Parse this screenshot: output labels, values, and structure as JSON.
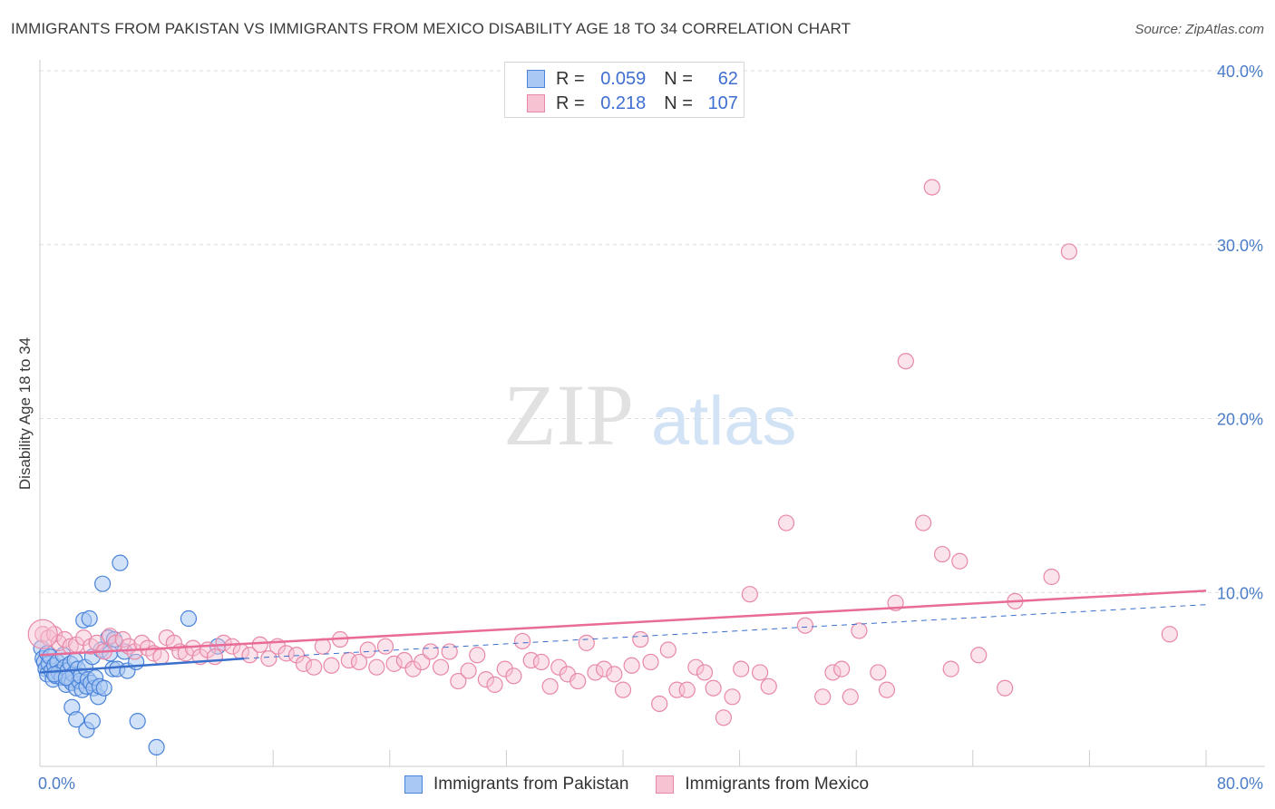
{
  "header": {
    "title": "IMMIGRANTS FROM PAKISTAN VS IMMIGRANTS FROM MEXICO DISABILITY AGE 18 TO 34 CORRELATION CHART",
    "source": "Source: ZipAtlas.com"
  },
  "watermark": {
    "zip": "ZIP",
    "atlas": "atlas"
  },
  "legend_top": {
    "rows": [
      {
        "r_label": "R =",
        "r_value": "0.059",
        "n_label": "N =",
        "n_value": "62"
      },
      {
        "r_label": "R =",
        "r_value": "0.218",
        "n_label": "N =",
        "n_value": "107"
      }
    ]
  },
  "colors": {
    "pakistan_fill": "#a9c8f3",
    "pakistan_stroke": "#4a83d9",
    "pakistan_line": "#3a6fcc",
    "mexico_fill": "#f7c2d2",
    "mexico_stroke": "#e888a8",
    "mexico_line": "#e86b98",
    "tick_text": "#4a7cc7",
    "grid": "#dddddd"
  },
  "chart_data": {
    "type": "scatter",
    "title": "IMMIGRANTS FROM PAKISTAN VS IMMIGRANTS FROM MEXICO DISABILITY AGE 18 TO 34 CORRELATION CHART",
    "xlabel": "",
    "ylabel": "Disability Age 18 to 34",
    "xlim": [
      0,
      80
    ],
    "ylim": [
      0,
      40
    ],
    "x_tick_labels": [
      "0.0%",
      "80.0%"
    ],
    "y_ticks": [
      10,
      20,
      30,
      40
    ],
    "y_tick_labels": [
      "10.0%",
      "20.0%",
      "30.0%",
      "40.0%"
    ],
    "legend_position": "bottom",
    "series": [
      {
        "name": "Immigrants from Pakistan",
        "r": 0.059,
        "n": 62,
        "trend": {
          "x": [
            0,
            14
          ],
          "y": [
            5.4,
            6.2
          ],
          "extended_x": [
            14,
            80
          ],
          "extended_y": [
            6.2,
            9.3
          ]
        },
        "points": [
          [
            0.1,
            6.8
          ],
          [
            0.2,
            6.2
          ],
          [
            0.3,
            6.0
          ],
          [
            0.4,
            5.6
          ],
          [
            0.5,
            5.3
          ],
          [
            0.5,
            6.5
          ],
          [
            0.6,
            5.9
          ],
          [
            0.7,
            6.3
          ],
          [
            0.8,
            5.5
          ],
          [
            0.9,
            5.0
          ],
          [
            1.0,
            5.8
          ],
          [
            1.1,
            5.2
          ],
          [
            1.2,
            6.0
          ],
          [
            1.3,
            5.4
          ],
          [
            1.5,
            5.1
          ],
          [
            1.6,
            6.4
          ],
          [
            1.7,
            5.7
          ],
          [
            1.8,
            4.7
          ],
          [
            1.9,
            5.5
          ],
          [
            2.0,
            5.0
          ],
          [
            2.1,
            5.9
          ],
          [
            2.2,
            4.8
          ],
          [
            2.3,
            5.3
          ],
          [
            2.4,
            6.1
          ],
          [
            2.5,
            4.5
          ],
          [
            2.6,
            5.6
          ],
          [
            2.7,
            4.9
          ],
          [
            2.8,
            5.2
          ],
          [
            2.9,
            4.4
          ],
          [
            3.0,
            8.4
          ],
          [
            3.1,
            5.7
          ],
          [
            3.2,
            4.6
          ],
          [
            3.3,
            5.0
          ],
          [
            3.4,
            8.5
          ],
          [
            3.5,
            4.8
          ],
          [
            3.6,
            6.3
          ],
          [
            3.7,
            4.5
          ],
          [
            3.8,
            5.1
          ],
          [
            4.0,
            4.0
          ],
          [
            4.1,
            4.6
          ],
          [
            4.2,
            6.7
          ],
          [
            4.3,
            10.5
          ],
          [
            4.4,
            4.5
          ],
          [
            4.7,
            7.4
          ],
          [
            4.8,
            6.5
          ],
          [
            5.0,
            5.6
          ],
          [
            5.1,
            7.3
          ],
          [
            5.3,
            5.6
          ],
          [
            5.5,
            11.7
          ],
          [
            5.8,
            6.6
          ],
          [
            6.0,
            5.5
          ],
          [
            6.6,
            6.0
          ],
          [
            6.7,
            2.6
          ],
          [
            2.2,
            3.4
          ],
          [
            2.5,
            2.7
          ],
          [
            3.2,
            2.1
          ],
          [
            3.6,
            2.6
          ],
          [
            8.0,
            1.1
          ],
          [
            10.2,
            8.5
          ],
          [
            12.2,
            6.9
          ],
          [
            1.0,
            5.3
          ],
          [
            1.8,
            5.1
          ]
        ]
      },
      {
        "name": "Immigrants from Mexico",
        "r": 0.218,
        "n": 107,
        "trend": {
          "x": [
            0,
            80
          ],
          "y": [
            6.4,
            10.1
          ]
        },
        "points": [
          [
            0.2,
            7.6
          ],
          [
            0.6,
            7.4
          ],
          [
            1.0,
            7.6
          ],
          [
            1.3,
            7.1
          ],
          [
            1.7,
            7.3
          ],
          [
            2.1,
            6.9
          ],
          [
            2.5,
            7.0
          ],
          [
            3.0,
            7.4
          ],
          [
            3.5,
            6.9
          ],
          [
            3.9,
            7.1
          ],
          [
            4.4,
            6.6
          ],
          [
            4.8,
            7.5
          ],
          [
            5.2,
            7.1
          ],
          [
            5.7,
            7.3
          ],
          [
            6.1,
            6.9
          ],
          [
            6.5,
            6.6
          ],
          [
            7.0,
            7.1
          ],
          [
            7.4,
            6.8
          ],
          [
            7.8,
            6.5
          ],
          [
            8.3,
            6.3
          ],
          [
            8.7,
            7.4
          ],
          [
            9.2,
            7.1
          ],
          [
            9.6,
            6.6
          ],
          [
            10.0,
            6.5
          ],
          [
            10.5,
            6.8
          ],
          [
            11.0,
            6.3
          ],
          [
            11.5,
            6.7
          ],
          [
            12.0,
            6.3
          ],
          [
            12.6,
            7.1
          ],
          [
            13.2,
            6.9
          ],
          [
            13.8,
            6.6
          ],
          [
            14.4,
            6.4
          ],
          [
            15.1,
            7.0
          ],
          [
            15.7,
            6.2
          ],
          [
            16.3,
            6.9
          ],
          [
            16.9,
            6.5
          ],
          [
            17.6,
            6.4
          ],
          [
            18.1,
            5.9
          ],
          [
            18.8,
            5.7
          ],
          [
            19.4,
            6.9
          ],
          [
            20.0,
            5.8
          ],
          [
            20.6,
            7.3
          ],
          [
            21.2,
            6.1
          ],
          [
            21.9,
            6.0
          ],
          [
            22.5,
            6.7
          ],
          [
            23.1,
            5.7
          ],
          [
            23.7,
            6.9
          ],
          [
            24.3,
            5.9
          ],
          [
            25.0,
            6.1
          ],
          [
            25.6,
            5.6
          ],
          [
            26.2,
            6.0
          ],
          [
            26.8,
            6.6
          ],
          [
            27.5,
            5.7
          ],
          [
            28.1,
            6.6
          ],
          [
            28.7,
            4.9
          ],
          [
            29.4,
            5.5
          ],
          [
            30.0,
            6.4
          ],
          [
            30.6,
            5.0
          ],
          [
            31.2,
            4.7
          ],
          [
            31.9,
            5.6
          ],
          [
            32.5,
            5.2
          ],
          [
            33.1,
            7.2
          ],
          [
            33.7,
            6.1
          ],
          [
            34.4,
            6.0
          ],
          [
            35.0,
            4.6
          ],
          [
            35.6,
            5.7
          ],
          [
            36.2,
            5.3
          ],
          [
            36.9,
            4.9
          ],
          [
            37.5,
            7.1
          ],
          [
            38.1,
            5.4
          ],
          [
            38.7,
            5.6
          ],
          [
            39.4,
            5.3
          ],
          [
            40.0,
            4.4
          ],
          [
            40.6,
            5.8
          ],
          [
            41.2,
            7.3
          ],
          [
            41.9,
            6.0
          ],
          [
            42.5,
            3.6
          ],
          [
            43.1,
            6.7
          ],
          [
            43.7,
            4.4
          ],
          [
            44.4,
            4.4
          ],
          [
            45.0,
            5.7
          ],
          [
            45.6,
            5.4
          ],
          [
            46.2,
            4.5
          ],
          [
            46.9,
            2.8
          ],
          [
            47.5,
            4.0
          ],
          [
            48.1,
            5.6
          ],
          [
            48.7,
            9.9
          ],
          [
            49.4,
            5.4
          ],
          [
            50.0,
            4.6
          ],
          [
            51.2,
            14.0
          ],
          [
            52.5,
            8.1
          ],
          [
            53.7,
            4.0
          ],
          [
            54.4,
            5.4
          ],
          [
            55.0,
            5.6
          ],
          [
            55.6,
            4.0
          ],
          [
            56.2,
            7.8
          ],
          [
            57.5,
            5.4
          ],
          [
            58.1,
            4.4
          ],
          [
            58.7,
            9.4
          ],
          [
            59.4,
            23.3
          ],
          [
            60.6,
            14.0
          ],
          [
            61.2,
            33.3
          ],
          [
            61.9,
            12.2
          ],
          [
            62.5,
            5.6
          ],
          [
            63.1,
            11.8
          ],
          [
            64.4,
            6.4
          ],
          [
            66.2,
            4.5
          ],
          [
            66.9,
            9.5
          ],
          [
            69.4,
            10.9
          ],
          [
            70.6,
            29.6
          ],
          [
            77.5,
            7.6
          ]
        ]
      }
    ]
  },
  "legend_bottom": {
    "pakistan_label": "Immigrants from Pakistan",
    "mexico_label": "Immigrants from Mexico"
  }
}
